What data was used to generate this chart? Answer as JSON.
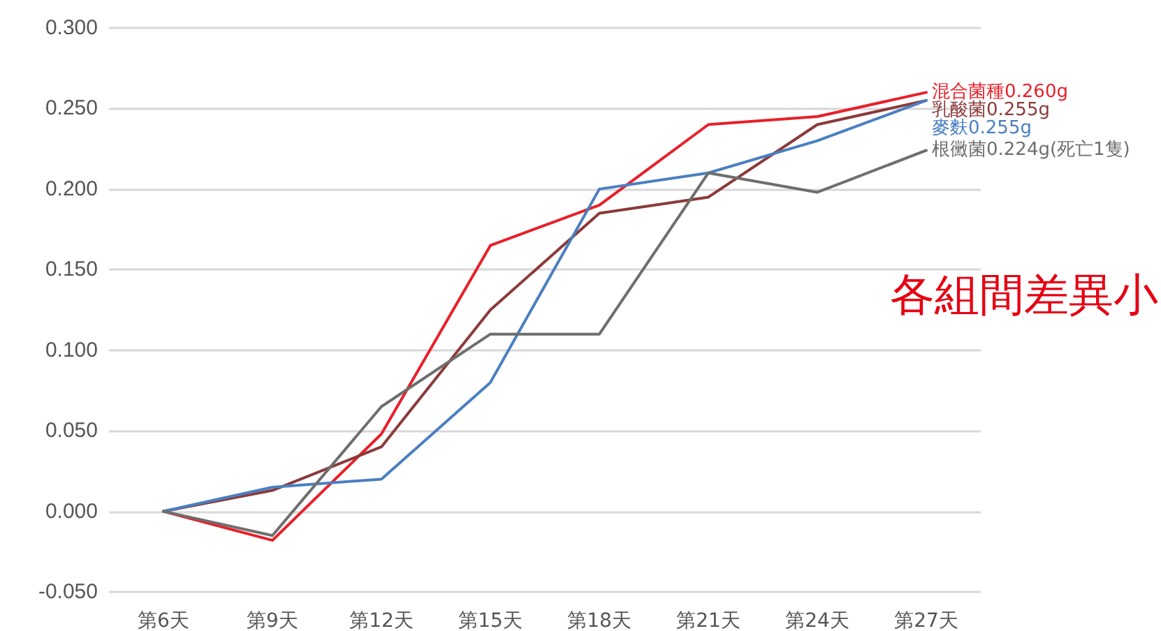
{
  "chart_data": {
    "type": "line",
    "categories": [
      "第6天",
      "第9天",
      "第12天",
      "第15天",
      "第18天",
      "第21天",
      "第24天",
      "第27天"
    ],
    "series": [
      {
        "name": "混合菌種0.260g",
        "color": "#e8202a",
        "values": [
          0,
          -0.018,
          0.048,
          0.165,
          0.19,
          0.24,
          0.245,
          0.26
        ]
      },
      {
        "name": "乳酸菌0.255g",
        "color": "#8b3a3a",
        "values": [
          0,
          0.013,
          0.04,
          0.125,
          0.185,
          0.195,
          0.24,
          0.255
        ]
      },
      {
        "name": "麥麩0.255g",
        "color": "#4a7fc1",
        "values": [
          0,
          0.015,
          0.02,
          0.08,
          0.2,
          0.21,
          0.23,
          0.255
        ]
      },
      {
        "name": "根黴菌0.224g(死亡1隻)",
        "color": "#6e6e6e",
        "values": [
          0,
          -0.015,
          0.065,
          0.11,
          0.11,
          0.21,
          0.198,
          0.224
        ]
      }
    ],
    "ylim": [
      -0.05,
      0.3
    ],
    "yticks": [
      {
        "value": -0.05,
        "label": "-0.050"
      },
      {
        "value": 0,
        "label": "0.000"
      },
      {
        "value": 0.05,
        "label": "0.050"
      },
      {
        "value": 0.1,
        "label": "0.100"
      },
      {
        "value": 0.15,
        "label": "0.150"
      },
      {
        "value": 0.2,
        "label": "0.200"
      },
      {
        "value": 0.25,
        "label": "0.250"
      },
      {
        "value": 0.3,
        "label": "0.300"
      }
    ],
    "grid": "y",
    "legend": false,
    "marker": "none",
    "line_style": "solid",
    "annotations": [
      "各組間差異小"
    ]
  }
}
